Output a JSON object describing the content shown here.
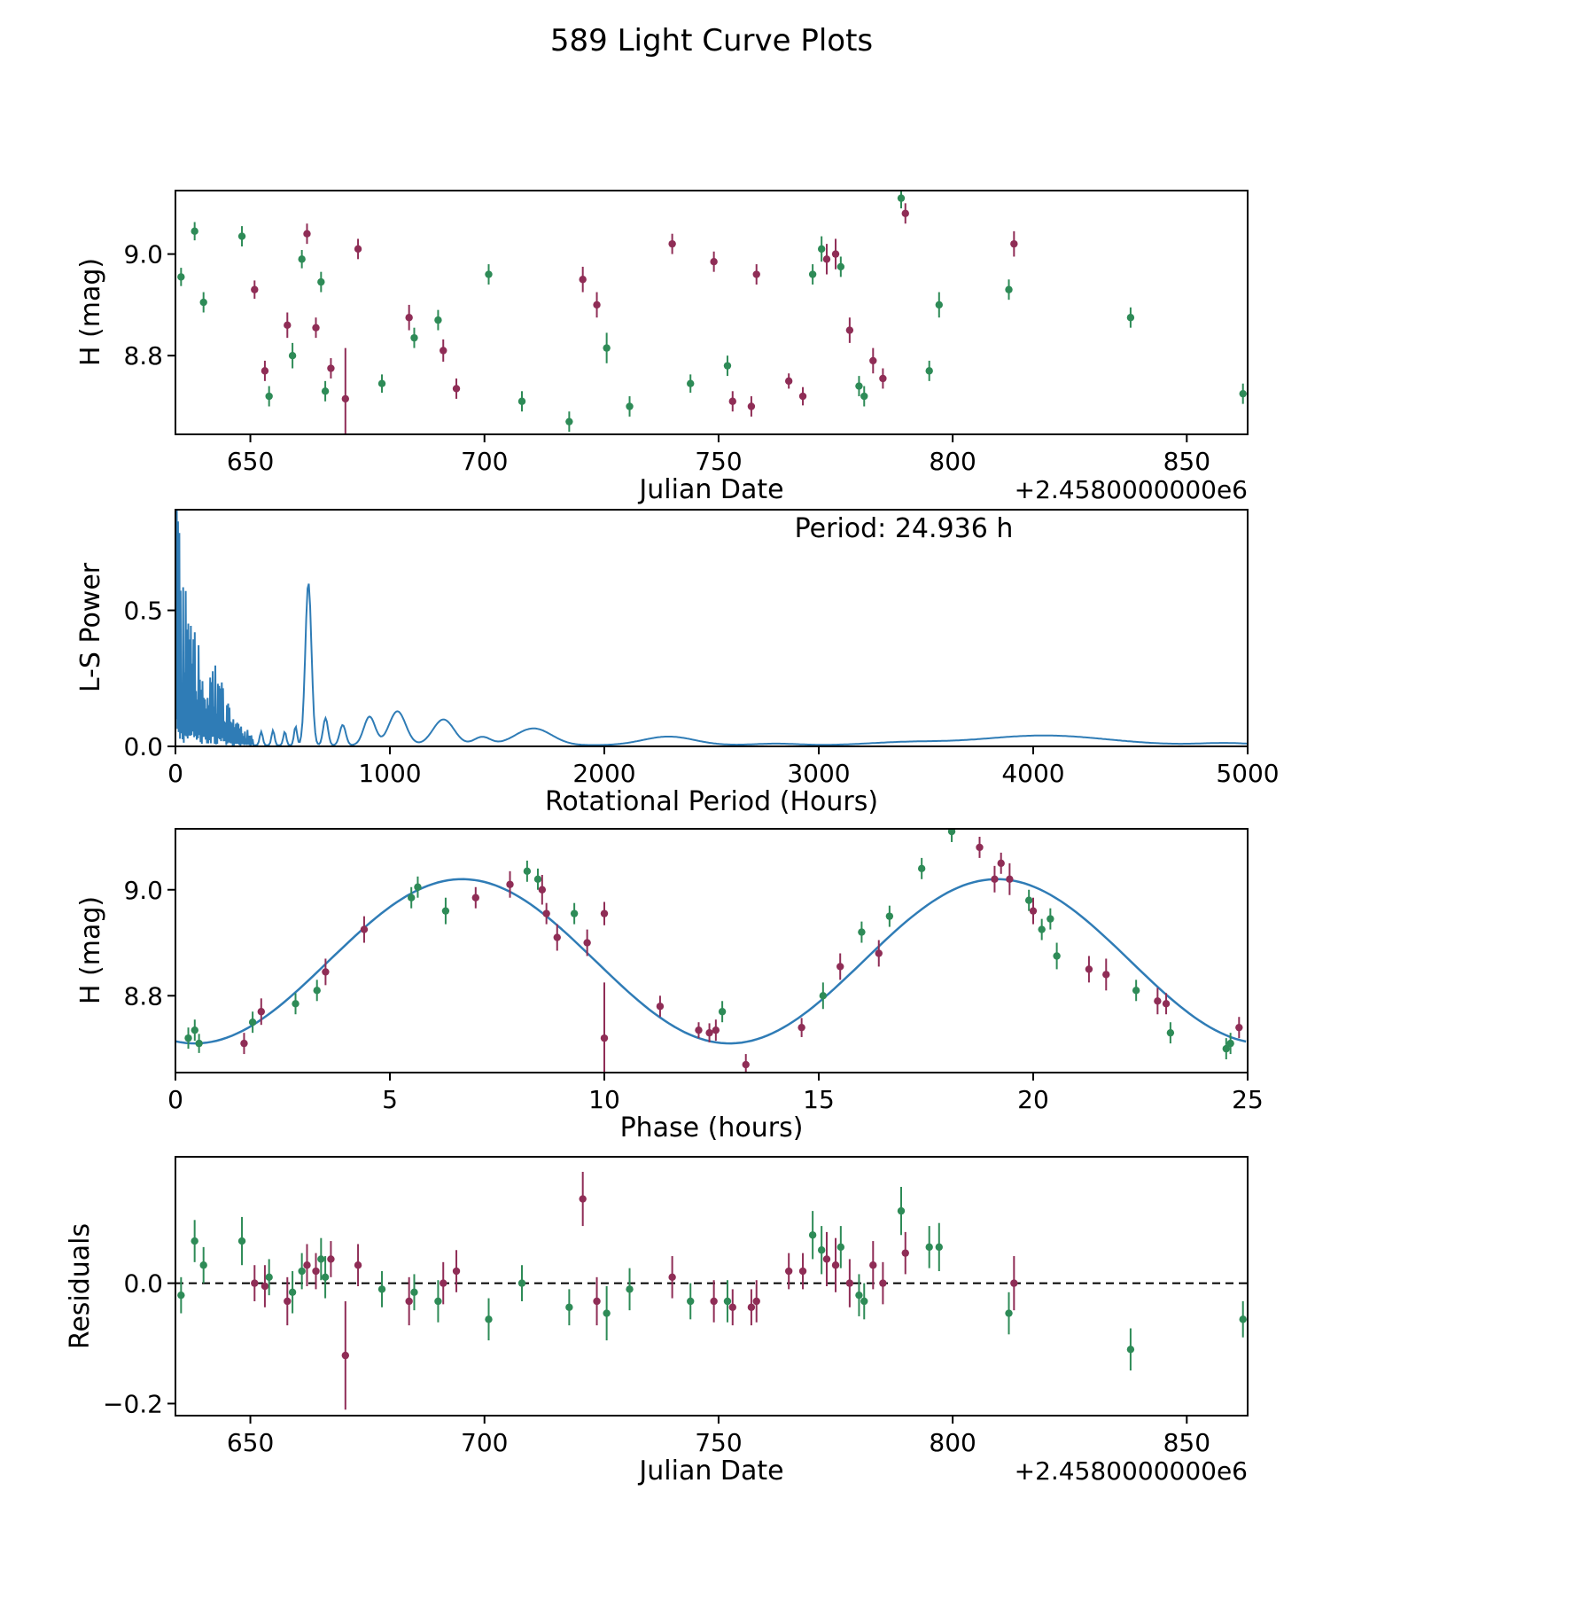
{
  "title": "589 Light Curve Plots",
  "colors": {
    "green": "#2e8b57",
    "purple": "#8f2d56",
    "line": "#2f7cb6",
    "text": "#000000"
  },
  "chart_data": [
    {
      "type": "scatter",
      "name": "light_curve",
      "xlabel": "Julian Date",
      "ylabel": "H (mag)",
      "x_offset_label": "+2.4580000000e6",
      "xlim": [
        634,
        863
      ],
      "ylim": [
        8.645,
        9.125
      ],
      "xticks": {
        "vals": [
          650,
          700,
          750,
          800,
          850
        ],
        "labels": [
          "650",
          "700",
          "750",
          "800",
          "850"
        ]
      },
      "yticks": {
        "vals": [
          8.8,
          9.0
        ],
        "labels": [
          "8.8",
          "9.0"
        ]
      },
      "point_columns": [
        "julian_date",
        "H_mag",
        "H_err",
        "series",
        "residual",
        "residual_err"
      ],
      "series_colors": {
        "g": "green",
        "p": "purple"
      },
      "points": [
        [
          635.2,
          8.955,
          0.018,
          "g",
          -0.02,
          0.03
        ],
        [
          638.1,
          9.045,
          0.018,
          "g",
          0.07,
          0.035
        ],
        [
          640.0,
          8.905,
          0.02,
          "g",
          0.03,
          0.03
        ],
        [
          648.2,
          9.035,
          0.02,
          "g",
          0.07,
          0.04
        ],
        [
          650.9,
          8.93,
          0.018,
          "p",
          0.0,
          0.03
        ],
        [
          653.1,
          8.77,
          0.02,
          "p",
          -0.005,
          0.035
        ],
        [
          654.0,
          8.72,
          0.02,
          "g",
          0.01,
          0.03
        ],
        [
          657.9,
          8.86,
          0.025,
          "p",
          -0.03,
          0.04
        ],
        [
          659.0,
          8.8,
          0.025,
          "g",
          -0.015,
          0.035
        ],
        [
          661.0,
          8.99,
          0.018,
          "g",
          0.02,
          0.03
        ],
        [
          662.1,
          9.04,
          0.02,
          "p",
          0.03,
          0.035
        ],
        [
          664.0,
          8.855,
          0.02,
          "p",
          0.02,
          0.03
        ],
        [
          665.1,
          8.945,
          0.02,
          "g",
          0.04,
          0.035
        ],
        [
          666.0,
          8.73,
          0.02,
          "g",
          0.01,
          0.035
        ],
        [
          667.2,
          8.775,
          0.02,
          "p",
          0.04,
          0.03
        ],
        [
          670.3,
          8.715,
          0.1,
          "p",
          -0.12,
          0.09
        ],
        [
          673.0,
          9.01,
          0.02,
          "p",
          0.03,
          0.035
        ],
        [
          678.1,
          8.745,
          0.018,
          "g",
          -0.01,
          0.03
        ],
        [
          683.9,
          8.875,
          0.025,
          "p",
          -0.03,
          0.04
        ],
        [
          685.0,
          8.835,
          0.02,
          "g",
          -0.015,
          0.03
        ],
        [
          690.1,
          8.87,
          0.02,
          "g",
          -0.03,
          0.035
        ],
        [
          691.2,
          8.81,
          0.022,
          "p",
          0.0,
          0.035
        ],
        [
          694.0,
          8.735,
          0.02,
          "p",
          0.02,
          0.035
        ],
        [
          700.9,
          8.96,
          0.02,
          "g",
          -0.06,
          0.035
        ],
        [
          708.0,
          8.71,
          0.02,
          "g",
          0.0,
          0.03
        ],
        [
          718.1,
          8.67,
          0.02,
          "g",
          -0.04,
          0.03
        ],
        [
          721.0,
          8.95,
          0.025,
          "p",
          0.14,
          0.045
        ],
        [
          724.0,
          8.9,
          0.025,
          "p",
          -0.03,
          0.04
        ],
        [
          726.1,
          8.815,
          0.03,
          "g",
          -0.05,
          0.045
        ],
        [
          731.0,
          8.7,
          0.02,
          "g",
          -0.01,
          0.035
        ],
        [
          740.1,
          9.02,
          0.02,
          "p",
          0.01,
          0.035
        ],
        [
          744.0,
          8.745,
          0.018,
          "g",
          -0.03,
          0.03
        ],
        [
          749.0,
          8.985,
          0.02,
          "p",
          -0.03,
          0.035
        ],
        [
          751.9,
          8.78,
          0.02,
          "g",
          -0.03,
          0.035
        ],
        [
          753.0,
          8.71,
          0.02,
          "p",
          -0.04,
          0.03
        ],
        [
          757.0,
          8.7,
          0.02,
          "p",
          -0.04,
          0.03
        ],
        [
          758.1,
          8.96,
          0.02,
          "p",
          -0.03,
          0.035
        ],
        [
          765.0,
          8.75,
          0.015,
          "p",
          0.02,
          0.03
        ],
        [
          768.0,
          8.72,
          0.018,
          "p",
          0.02,
          0.03
        ],
        [
          770.1,
          8.96,
          0.02,
          "g",
          0.08,
          0.04
        ],
        [
          772.0,
          9.01,
          0.025,
          "g",
          0.055,
          0.04
        ],
        [
          773.1,
          8.99,
          0.03,
          "p",
          0.04,
          0.045
        ],
        [
          775.0,
          9.0,
          0.03,
          "p",
          0.03,
          0.045
        ],
        [
          776.1,
          8.975,
          0.02,
          "g",
          0.06,
          0.035
        ],
        [
          778.0,
          8.85,
          0.025,
          "p",
          0.0,
          0.04
        ],
        [
          780.0,
          8.74,
          0.02,
          "g",
          -0.02,
          0.035
        ],
        [
          781.1,
          8.72,
          0.02,
          "g",
          -0.03,
          0.03
        ],
        [
          783.0,
          8.79,
          0.025,
          "p",
          0.03,
          0.04
        ],
        [
          785.1,
          8.755,
          0.02,
          "p",
          0.0,
          0.035
        ],
        [
          789.0,
          9.11,
          0.02,
          "g",
          0.12,
          0.04
        ],
        [
          789.9,
          9.08,
          0.02,
          "p",
          0.05,
          0.035
        ],
        [
          795.0,
          8.77,
          0.02,
          "g",
          0.06,
          0.035
        ],
        [
          797.1,
          8.9,
          0.025,
          "g",
          0.06,
          0.04
        ],
        [
          812.0,
          8.93,
          0.02,
          "g",
          -0.05,
          0.035
        ],
        [
          813.1,
          9.02,
          0.025,
          "p",
          0.0,
          0.045
        ],
        [
          838.0,
          8.875,
          0.02,
          "g",
          -0.11,
          0.035
        ],
        [
          862.0,
          8.725,
          0.02,
          "g",
          -0.06,
          0.03
        ]
      ]
    },
    {
      "type": "line",
      "name": "periodogram",
      "xlabel": "Rotational Period (Hours)",
      "ylabel": "L-S Power",
      "annotation": "Period: 24.936 h",
      "best_period_hours": 24.936,
      "xlim": [
        0,
        5000
      ],
      "ylim": [
        0,
        0.87
      ],
      "xticks": {
        "vals": [
          0,
          1000,
          2000,
          3000,
          4000,
          5000
        ],
        "labels": [
          "0",
          "1000",
          "2000",
          "3000",
          "4000",
          "5000"
        ]
      },
      "yticks": {
        "vals": [
          0.0,
          0.5
        ],
        "labels": [
          "0.0",
          "0.5"
        ]
      },
      "main_peak": {
        "period_hours": 620,
        "power": 0.6
      },
      "peaks": [
        [
          620,
          0.6,
          20
        ],
        [
          700,
          0.1,
          16
        ],
        [
          780,
          0.075,
          20
        ],
        [
          905,
          0.105,
          38
        ],
        [
          1035,
          0.125,
          55
        ],
        [
          1250,
          0.095,
          70
        ],
        [
          1430,
          0.03,
          55
        ],
        [
          1670,
          0.062,
          120
        ],
        [
          2300,
          0.032,
          170
        ],
        [
          2800,
          0.006,
          150
        ],
        [
          3400,
          0.01,
          250
        ],
        [
          4050,
          0.036,
          420
        ],
        [
          4900,
          0.008,
          180
        ],
        [
          400,
          0.05,
          10
        ],
        [
          455,
          0.055,
          10
        ],
        [
          510,
          0.05,
          10
        ],
        [
          560,
          0.07,
          10
        ]
      ],
      "noise_region": {
        "x_max": 360,
        "step": 3,
        "envelope_scale": 0.9,
        "envelope_tau": 110,
        "bump_center": 200,
        "bump_sigma": 55,
        "bump_gain": 0.9
      },
      "baseline": 0.004
    },
    {
      "type": "scatter_with_fit",
      "name": "phase_folded",
      "xlabel": "Phase (hours)",
      "ylabel": "H (mag)",
      "xlim": [
        0,
        25
      ],
      "ylim": [
        8.655,
        9.115
      ],
      "xticks": {
        "vals": [
          0,
          5,
          10,
          15,
          20,
          25
        ],
        "labels": [
          "0",
          "5",
          "10",
          "15",
          "20",
          "25"
        ]
      },
      "yticks": {
        "vals": [
          8.8,
          9.0
        ],
        "labels": [
          "8.8",
          "9.0"
        ]
      },
      "fit": {
        "mean": 8.865,
        "amplitude": 0.155,
        "period_hours": 12.47,
        "x_offset": 0.45,
        "shape": "mean - amplitude*cos(2*pi*(x-x_offset)/period)"
      },
      "point_columns": [
        "phase_hours",
        "H_mag",
        "H_err",
        "series"
      ],
      "points": [
        [
          0.3,
          8.72,
          0.02,
          "g"
        ],
        [
          0.45,
          8.735,
          0.02,
          "g"
        ],
        [
          0.55,
          8.71,
          0.018,
          "g"
        ],
        [
          1.6,
          8.71,
          0.02,
          "p"
        ],
        [
          1.8,
          8.75,
          0.02,
          "g"
        ],
        [
          2.0,
          8.77,
          0.025,
          "p"
        ],
        [
          2.8,
          8.785,
          0.02,
          "g"
        ],
        [
          3.3,
          8.81,
          0.02,
          "g"
        ],
        [
          3.5,
          8.845,
          0.025,
          "p"
        ],
        [
          4.4,
          8.925,
          0.025,
          "p"
        ],
        [
          5.5,
          8.985,
          0.02,
          "g"
        ],
        [
          5.65,
          9.005,
          0.02,
          "g"
        ],
        [
          6.3,
          8.96,
          0.025,
          "g"
        ],
        [
          7.0,
          8.985,
          0.02,
          "p"
        ],
        [
          7.8,
          9.01,
          0.025,
          "p"
        ],
        [
          8.2,
          9.035,
          0.02,
          "g"
        ],
        [
          8.45,
          9.02,
          0.02,
          "g"
        ],
        [
          8.55,
          9.0,
          0.028,
          "p"
        ],
        [
          8.65,
          8.955,
          0.02,
          "p"
        ],
        [
          8.9,
          8.91,
          0.025,
          "p"
        ],
        [
          9.3,
          8.955,
          0.02,
          "g"
        ],
        [
          9.6,
          8.9,
          0.025,
          "p"
        ],
        [
          10.0,
          8.955,
          0.022,
          "p"
        ],
        [
          10.0,
          8.72,
          0.105,
          "p"
        ],
        [
          11.3,
          8.78,
          0.02,
          "p"
        ],
        [
          12.2,
          8.735,
          0.015,
          "p"
        ],
        [
          12.45,
          8.73,
          0.018,
          "p"
        ],
        [
          12.6,
          8.735,
          0.02,
          "p"
        ],
        [
          12.75,
          8.77,
          0.02,
          "g"
        ],
        [
          13.3,
          8.67,
          0.02,
          "p"
        ],
        [
          14.6,
          8.74,
          0.018,
          "p"
        ],
        [
          15.1,
          8.8,
          0.025,
          "g"
        ],
        [
          15.5,
          8.855,
          0.025,
          "p"
        ],
        [
          16.0,
          8.92,
          0.02,
          "g"
        ],
        [
          16.4,
          8.88,
          0.025,
          "p"
        ],
        [
          16.65,
          8.95,
          0.02,
          "g"
        ],
        [
          17.4,
          9.04,
          0.02,
          "g"
        ],
        [
          18.1,
          9.11,
          0.02,
          "g"
        ],
        [
          18.75,
          9.08,
          0.02,
          "p"
        ],
        [
          19.1,
          9.02,
          0.025,
          "p"
        ],
        [
          19.25,
          9.05,
          0.02,
          "p"
        ],
        [
          19.45,
          9.02,
          0.03,
          "p"
        ],
        [
          19.9,
          8.98,
          0.02,
          "g"
        ],
        [
          20.0,
          8.96,
          0.025,
          "p"
        ],
        [
          20.2,
          8.925,
          0.02,
          "g"
        ],
        [
          20.4,
          8.945,
          0.02,
          "g"
        ],
        [
          20.55,
          8.875,
          0.025,
          "g"
        ],
        [
          21.3,
          8.85,
          0.025,
          "p"
        ],
        [
          21.7,
          8.84,
          0.03,
          "p"
        ],
        [
          22.4,
          8.81,
          0.02,
          "g"
        ],
        [
          22.9,
          8.79,
          0.025,
          "p"
        ],
        [
          23.1,
          8.785,
          0.02,
          "p"
        ],
        [
          23.2,
          8.73,
          0.02,
          "g"
        ],
        [
          24.5,
          8.7,
          0.02,
          "g"
        ],
        [
          24.6,
          8.71,
          0.02,
          "g"
        ],
        [
          24.8,
          8.74,
          0.02,
          "p"
        ]
      ]
    },
    {
      "type": "scatter",
      "name": "residuals",
      "xlabel": "Julian Date",
      "ylabel": "Residuals",
      "x_offset_label": "+2.4580000000e6",
      "xlim": [
        634,
        863
      ],
      "ylim": [
        -0.22,
        0.21
      ],
      "xticks": {
        "vals": [
          650,
          700,
          750,
          800,
          850
        ],
        "labels": [
          "650",
          "700",
          "750",
          "800",
          "850"
        ]
      },
      "yticks": {
        "vals": [
          -0.2,
          0.0
        ],
        "labels": [
          "−0.2",
          "0.0"
        ]
      },
      "zero_line": 0.0,
      "points_source": "chart_data[0].points columns julian_date, residual, residual_err, series"
    }
  ]
}
